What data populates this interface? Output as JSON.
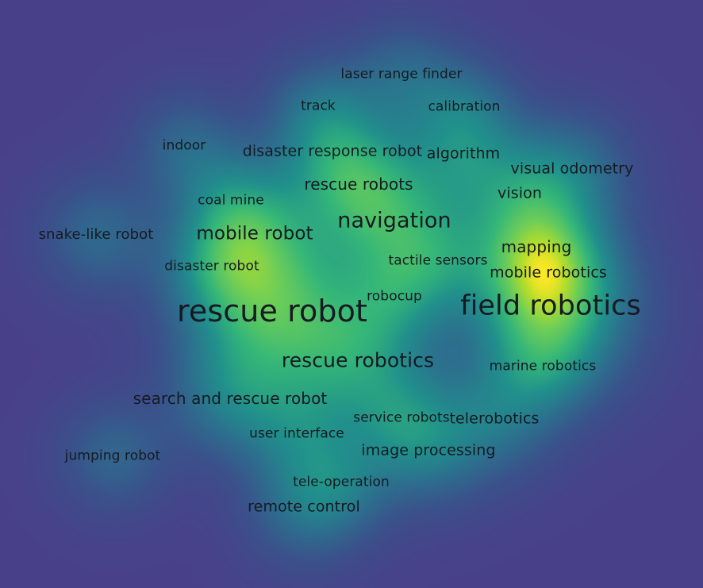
{
  "colors": {
    "background": "#48418a",
    "density_low": "#3b528b",
    "density_mid": "#21918c",
    "density_high": "#5ec962",
    "density_peak": "#fde725",
    "label_text": "#161a22"
  },
  "keywords": [
    {
      "id": "laser-range-finder",
      "text": "laser range finder",
      "weight": 0.35
    },
    {
      "id": "track",
      "text": "track",
      "weight": 0.35
    },
    {
      "id": "calibration",
      "text": "calibration",
      "weight": 0.35
    },
    {
      "id": "indoor",
      "text": "indoor",
      "weight": 0.35
    },
    {
      "id": "disaster-response-robot",
      "text": "disaster response robot",
      "weight": 0.45
    },
    {
      "id": "algorithm",
      "text": "algorithm",
      "weight": 0.45
    },
    {
      "id": "visual-odometry",
      "text": "visual odometry",
      "weight": 0.45
    },
    {
      "id": "coal-mine",
      "text": "coal mine",
      "weight": 0.35
    },
    {
      "id": "rescue-robots",
      "text": "rescue robots",
      "weight": 0.5
    },
    {
      "id": "vision",
      "text": "vision",
      "weight": 0.45
    },
    {
      "id": "navigation",
      "text": "navigation",
      "weight": 0.75
    },
    {
      "id": "snake-like-robot",
      "text": "snake-like robot",
      "weight": 0.4
    },
    {
      "id": "mobile-robot",
      "text": "mobile robot",
      "weight": 0.6
    },
    {
      "id": "mapping",
      "text": "mapping",
      "weight": 0.5
    },
    {
      "id": "tactile-sensors",
      "text": "tactile sensors",
      "weight": 0.35
    },
    {
      "id": "disaster-robot",
      "text": "disaster robot",
      "weight": 0.35
    },
    {
      "id": "mobile-robotics",
      "text": "mobile robotics",
      "weight": 0.45
    },
    {
      "id": "robocup",
      "text": "robocup",
      "weight": 0.35
    },
    {
      "id": "rescue-robot",
      "text": "rescue robot",
      "weight": 1.0
    },
    {
      "id": "field-robotics",
      "text": "field robotics",
      "weight": 0.95
    },
    {
      "id": "rescue-robotics",
      "text": "rescue robotics",
      "weight": 0.7
    },
    {
      "id": "marine-robotics",
      "text": "marine robotics",
      "weight": 0.35
    },
    {
      "id": "search-and-rescue-robot",
      "text": "search and rescue robot",
      "weight": 0.5
    },
    {
      "id": "service-robots",
      "text": "service robots",
      "weight": 0.35
    },
    {
      "id": "telerobotics",
      "text": "telerobotics",
      "weight": 0.45
    },
    {
      "id": "user-interface",
      "text": "user interface",
      "weight": 0.35
    },
    {
      "id": "image-processing",
      "text": "image processing",
      "weight": 0.45
    },
    {
      "id": "jumping-robot",
      "text": "jumping robot",
      "weight": 0.35
    },
    {
      "id": "tele-operation",
      "text": "tele-operation",
      "weight": 0.35
    },
    {
      "id": "remote-control",
      "text": "remote control",
      "weight": 0.45
    }
  ]
}
